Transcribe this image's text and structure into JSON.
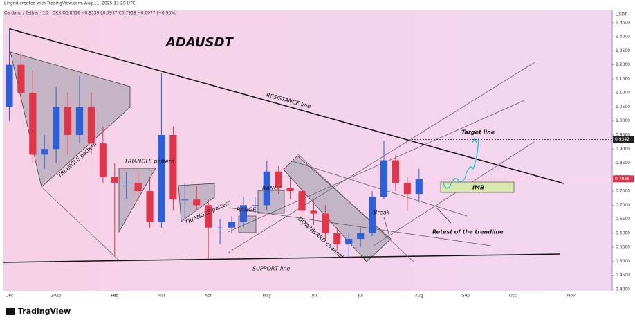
{
  "header": {
    "credit": "Lingrid created with TradingView.com, Aug 11, 2025 11:28 UTC",
    "symbol": "Cardano / Tether · 1D · OKX  O0.8016  H0.8339  L0.7937  C0.7938  −0.0077 (−0.96%)",
    "unit": "USDT"
  },
  "footer": {
    "brand": "TradingView"
  },
  "chart_data": {
    "type": "candlestick",
    "title": "ADAUSDT",
    "up_color": "#2f5fd8",
    "down_color": "#e0354a",
    "categories": [
      "Dec",
      null,
      null,
      null,
      "2025",
      null,
      null,
      null,
      null,
      "Feb",
      null,
      null,
      null,
      "Mar",
      null,
      null,
      null,
      "Apr",
      null,
      null,
      null,
      null,
      "May",
      null,
      null,
      null,
      "Jun",
      null,
      null,
      null,
      "Jul",
      null,
      null,
      null,
      null,
      "Aug",
      null,
      null,
      null,
      "Sep",
      null,
      null,
      null,
      "Oct",
      null,
      null,
      null,
      null,
      "Nov",
      null,
      null,
      null
    ],
    "open": [
      1.05,
      1.2,
      1.1,
      0.88,
      0.9,
      1.05,
      0.95,
      1.05,
      0.92,
      0.8,
      0.78,
      0.78,
      0.75,
      0.64,
      0.95,
      0.72,
      0.72,
      0.7,
      0.62,
      0.62,
      0.64,
      0.7,
      0.7,
      0.82,
      0.76,
      0.75,
      0.68,
      0.67,
      0.6,
      0.56,
      0.58,
      0.6,
      0.73,
      0.86,
      0.78,
      0.74,
      null,
      null,
      null,
      null,
      null,
      null,
      null,
      null,
      null,
      null,
      null,
      null,
      null,
      null,
      null,
      null
    ],
    "high": [
      1.33,
      1.25,
      1.18,
      0.95,
      1.12,
      1.1,
      1.16,
      1.1,
      0.98,
      0.85,
      0.82,
      0.82,
      0.8,
      1.17,
      0.98,
      0.78,
      0.77,
      0.72,
      0.65,
      0.66,
      0.73,
      0.73,
      0.86,
      0.84,
      0.8,
      0.76,
      0.72,
      0.7,
      0.62,
      0.6,
      0.62,
      0.75,
      0.93,
      0.88,
      0.8,
      0.83,
      null,
      null,
      null,
      null,
      null,
      null,
      null,
      null,
      null,
      null,
      null,
      null,
      null,
      null,
      null,
      null
    ],
    "low": [
      1.0,
      1.05,
      0.85,
      0.83,
      0.85,
      0.88,
      0.92,
      0.88,
      0.78,
      0.52,
      0.72,
      0.7,
      0.62,
      0.62,
      0.68,
      0.65,
      0.68,
      0.51,
      0.56,
      0.6,
      0.62,
      0.67,
      0.68,
      0.74,
      0.72,
      0.66,
      0.63,
      0.58,
      0.54,
      0.51,
      0.55,
      0.59,
      0.72,
      0.75,
      0.68,
      0.71,
      null,
      null,
      null,
      null,
      null,
      null,
      null,
      null,
      null,
      null,
      null,
      null,
      null,
      null,
      null,
      null
    ],
    "close": [
      1.2,
      1.1,
      0.88,
      0.9,
      1.05,
      0.95,
      1.05,
      0.92,
      0.8,
      0.78,
      0.78,
      0.75,
      0.64,
      0.95,
      0.72,
      0.72,
      0.7,
      0.62,
      0.62,
      0.64,
      0.7,
      0.7,
      0.82,
      0.76,
      0.75,
      0.68,
      0.67,
      0.6,
      0.56,
      0.58,
      0.6,
      0.73,
      0.86,
      0.78,
      0.74,
      0.7938,
      null,
      null,
      null,
      null,
      null,
      null,
      null,
      null,
      null,
      null,
      null,
      null,
      null,
      null,
      null,
      null
    ],
    "ylim": [
      0.395,
      1.394
    ],
    "yticks": [
      {
        "value": 0.4,
        "label": "0.4000"
      },
      {
        "value": 0.45,
        "label": "0.4500"
      },
      {
        "value": 0.5,
        "label": "0.5000"
      },
      {
        "value": 0.55,
        "label": "0.5500"
      },
      {
        "value": 0.6,
        "label": "0.6000"
      },
      {
        "value": 0.65,
        "label": "0.6500"
      },
      {
        "value": 0.7,
        "label": "0.7000"
      },
      {
        "value": 0.75,
        "label": "0.7500"
      },
      {
        "value": 0.8,
        "label": "0.8000"
      },
      {
        "value": 0.85,
        "label": "0.8500"
      },
      {
        "value": 0.9,
        "label": "0.9000"
      },
      {
        "value": 0.95,
        "label": "0.9500"
      },
      {
        "value": 1.0,
        "label": "1.0000"
      },
      {
        "value": 1.05,
        "label": "1.0500"
      },
      {
        "value": 1.1,
        "label": "1.1000"
      },
      {
        "value": 1.15,
        "label": "1.1500"
      },
      {
        "value": 1.2,
        "label": "1.2000"
      },
      {
        "value": 1.25,
        "label": "1.2500"
      },
      {
        "value": 1.3,
        "label": "1.3000"
      },
      {
        "value": 1.35,
        "label": "1.3500"
      }
    ],
    "price_markers": [
      {
        "value": 0.9342,
        "label": "0.9342",
        "color": "#222222"
      },
      {
        "value": 0.7938,
        "label": "0.7938",
        "color": "#e0354a"
      }
    ],
    "annotations": [
      {
        "text": "RESISTANCE line"
      },
      {
        "text": "SUPPORT line"
      },
      {
        "text": "TRIANGLE pattern"
      },
      {
        "text": "TRIANGLE pattern"
      },
      {
        "text": "TRIANGLE pattern"
      },
      {
        "text": "RANGE"
      },
      {
        "text": "RANGE"
      },
      {
        "text": "DOWNWARD channel"
      },
      {
        "text": "Break"
      },
      {
        "text": "Retest of the trendline"
      },
      {
        "text": "Target line"
      },
      {
        "text": "IMB"
      }
    ]
  }
}
